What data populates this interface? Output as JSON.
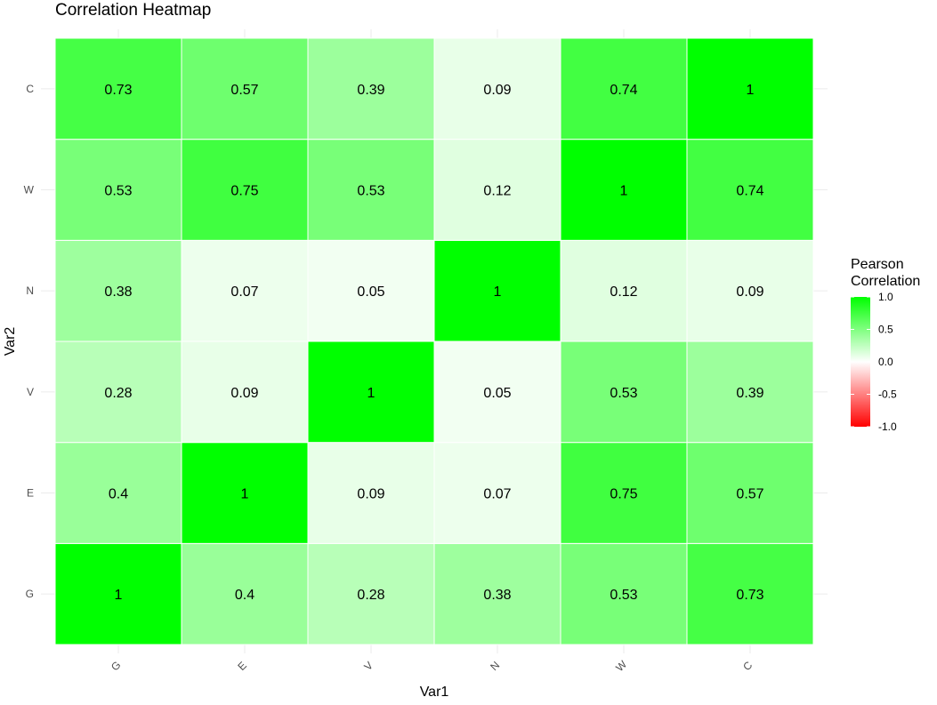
{
  "chart_data": {
    "type": "heatmap",
    "title": "Correlation Heatmap",
    "xlabel": "Var1",
    "ylabel": "Var2",
    "x_categories": [
      "G",
      "E",
      "V",
      "N",
      "W",
      "C"
    ],
    "y_categories": [
      "G",
      "E",
      "V",
      "N",
      "W",
      "C"
    ],
    "y_order": "bottom-to-top",
    "values": [
      [
        1,
        0.4,
        0.28,
        0.38,
        0.53,
        0.73
      ],
      [
        0.4,
        1,
        0.09,
        0.07,
        0.75,
        0.57
      ],
      [
        0.28,
        0.09,
        1,
        0.05,
        0.53,
        0.39
      ],
      [
        0.38,
        0.07,
        0.05,
        1,
        0.12,
        0.09
      ],
      [
        0.53,
        0.75,
        0.53,
        0.12,
        1,
        0.74
      ],
      [
        0.73,
        0.57,
        0.39,
        0.09,
        0.74,
        1
      ]
    ],
    "value_labels": [
      [
        "1",
        "0.4",
        "0.28",
        "0.38",
        "0.53",
        "0.73"
      ],
      [
        "0.4",
        "1",
        "0.09",
        "0.07",
        "0.75",
        "0.57"
      ],
      [
        "0.28",
        "0.09",
        "1",
        "0.05",
        "0.53",
        "0.39"
      ],
      [
        "0.38",
        "0.07",
        "0.05",
        "1",
        "0.12",
        "0.09"
      ],
      [
        "0.53",
        "0.75",
        "0.53",
        "0.12",
        "1",
        "0.74"
      ],
      [
        "0.73",
        "0.57",
        "0.39",
        "0.09",
        "0.74",
        "1"
      ]
    ],
    "legend": {
      "title_lines": [
        "Pearson",
        "Correlation"
      ],
      "ticks": [
        1.0,
        0.5,
        0.0,
        -0.5,
        -1.0
      ],
      "tick_labels": [
        "1.0",
        "0.5",
        "0.0",
        "-0.5",
        "-1.0"
      ],
      "limits": [
        -1,
        1
      ],
      "placement": "right"
    },
    "colors": {
      "low": "#ff0000",
      "mid": "#ffffff",
      "high": "#00ff00",
      "grid": "#ebebeb"
    },
    "x_tick_rotation": "angled"
  }
}
